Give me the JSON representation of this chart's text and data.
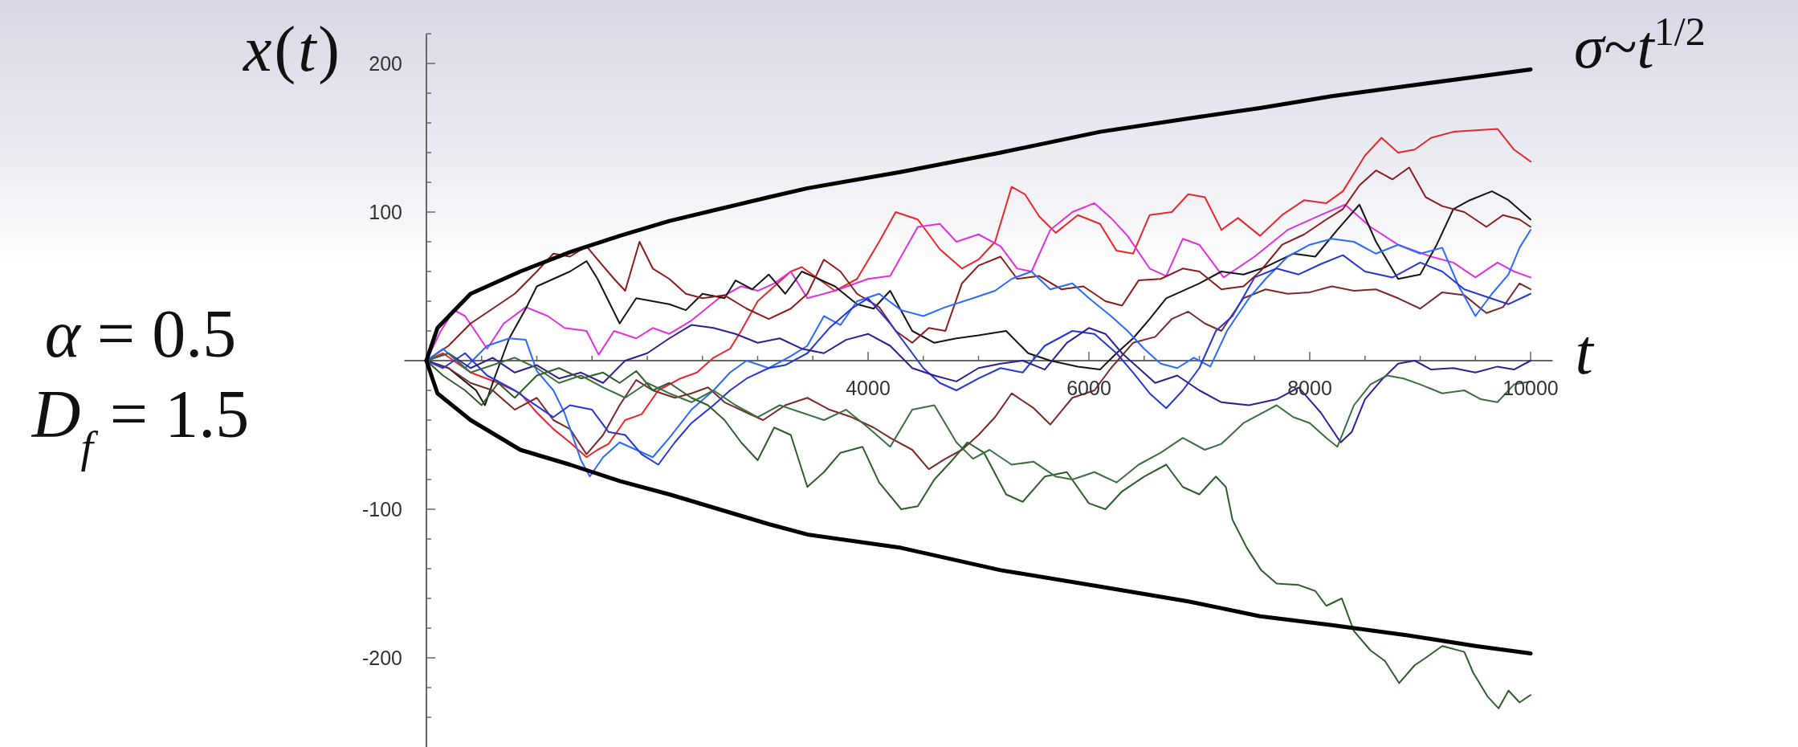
{
  "chart_data": {
    "type": "line",
    "xlabel": "t",
    "ylabel": "x(t)",
    "annotations": [
      "α = 0.5",
      "D$_{f}$ = 1.5"
    ],
    "xlim": [
      -200,
      10200
    ],
    "xticks": [
      {
        "value": 500,
        "label": null
      },
      {
        "value": 1000,
        "label": null
      },
      {
        "value": 1500,
        "label": null
      },
      {
        "value": 2000,
        "label": null
      },
      {
        "value": 2500,
        "label": null
      },
      {
        "value": 3000,
        "label": null
      },
      {
        "value": 3500,
        "label": null
      },
      4000,
      {
        "value": 4500,
        "label": null
      },
      {
        "value": 5000,
        "label": null
      },
      {
        "value": 5500,
        "label": null
      },
      6000,
      {
        "value": 6500,
        "label": null
      },
      {
        "value": 7000,
        "label": null
      },
      {
        "value": 7500,
        "label": null
      },
      8000,
      {
        "value": 8500,
        "label": null
      },
      {
        "value": 9000,
        "label": null
      },
      {
        "value": 9500,
        "label": null
      },
      10000
    ],
    "ylim": [
      -260,
      220
    ],
    "yticks": [
      {
        "value": -240,
        "label": null
      },
      {
        "value": -220,
        "label": null
      },
      -200,
      {
        "value": -180,
        "label": null
      },
      {
        "value": -160,
        "label": null
      },
      {
        "value": -140,
        "label": null
      },
      {
        "value": -120,
        "label": null
      },
      -100,
      {
        "value": -80,
        "label": null
      },
      {
        "value": -60,
        "label": null
      },
      {
        "value": -40,
        "label": null
      },
      {
        "value": -20,
        "label": null
      },
      {
        "value": 20,
        "label": null
      },
      {
        "value": 40,
        "label": null
      },
      {
        "value": 60,
        "label": null
      },
      {
        "value": 80,
        "label": null
      },
      100,
      {
        "value": 120,
        "label": null
      },
      {
        "value": 140,
        "label": null
      },
      {
        "value": 160,
        "label": null
      },
      {
        "value": 180,
        "label": null
      },
      200,
      {
        "value": 220,
        "label": null
      }
    ],
    "series": [
      {
        "name": "σ~t$^{1/2}$",
        "color": "#000000",
        "x": [
          0,
          100,
          400,
          850,
          1300,
          1750,
          2200,
          2650,
          3100,
          3450,
          4300,
          5200,
          6100,
          6900,
          7550,
          8200,
          8900,
          9500,
          10000
        ],
        "values": [
          0,
          22,
          45,
          60,
          73,
          84,
          94,
          102,
          110,
          116,
          127,
          140,
          154,
          163,
          170,
          178,
          185,
          191,
          196
        ]
      },
      {
        "color": "#000000",
        "x": [
          0,
          100,
          400,
          850,
          1300,
          1750,
          2200,
          2650,
          3100,
          3450,
          4300,
          5200,
          6100,
          6900,
          7550,
          8200,
          8900,
          9500,
          10000
        ],
        "values": [
          0,
          -22,
          -40,
          -60,
          -70,
          -81,
          -90,
          -100,
          -110,
          -117,
          -126,
          -141,
          -152,
          -162,
          -172,
          -178,
          -185,
          -192,
          -197
        ]
      },
      {
        "color": "#e8262b",
        "x": [
          0,
          150,
          400,
          650,
          850,
          1000,
          1150,
          1300,
          1450,
          1550,
          1650,
          1800,
          1950,
          2100,
          2300,
          2450,
          2600,
          2750,
          2850,
          3000,
          3150,
          3300,
          3400,
          3550,
          3700,
          3900,
          4100,
          4250,
          4450,
          4650,
          4850,
          5000,
          5150,
          5300,
          5420,
          5550,
          5700,
          5900,
          6100,
          6250,
          6400,
          6550,
          6750,
          6900,
          7050,
          7200,
          7350,
          7550,
          7750,
          7950,
          8150,
          8300,
          8500,
          8650,
          8800,
          8950,
          9100,
          9300,
          9500,
          9700,
          9850,
          10000
        ],
        "values": [
          0,
          5,
          -8,
          -15,
          -22,
          -35,
          -46,
          -55,
          -65,
          -60,
          -56,
          -40,
          -36,
          -20,
          -12,
          -8,
          2,
          8,
          20,
          40,
          50,
          60,
          63,
          55,
          47,
          55,
          80,
          100,
          95,
          75,
          62,
          68,
          80,
          117,
          112,
          97,
          86,
          98,
          92,
          74,
          72,
          98,
          100,
          112,
          110,
          88,
          96,
          84,
          98,
          108,
          106,
          114,
          138,
          150,
          140,
          142,
          150,
          154,
          155,
          156,
          142,
          134
        ]
      },
      {
        "color": "#e030e0",
        "x": [
          0,
          130,
          250,
          350,
          550,
          700,
          900,
          1100,
          1250,
          1450,
          1560,
          1700,
          1900,
          2050,
          2200,
          2400,
          2650,
          2850,
          3000,
          3150,
          3300,
          3450,
          3700,
          4000,
          4200,
          4450,
          4650,
          4800,
          5000,
          5200,
          5350,
          5480,
          5650,
          5850,
          6050,
          6200,
          6350,
          6550,
          6700,
          6850,
          7000,
          7220,
          7500,
          7800,
          8100,
          8320,
          8550,
          8800,
          9100,
          9300,
          9500,
          9700,
          9850,
          10000
        ],
        "values": [
          0,
          20,
          34,
          30,
          8,
          25,
          36,
          30,
          22,
          20,
          4,
          20,
          15,
          22,
          18,
          27,
          42,
          50,
          47,
          52,
          60,
          42,
          47,
          55,
          57,
          90,
          92,
          80,
          85,
          77,
          62,
          60,
          88,
          100,
          106,
          96,
          84,
          62,
          57,
          82,
          78,
          56,
          70,
          88,
          98,
          105,
          90,
          78,
          70,
          66,
          56,
          66,
          60,
          56
        ]
      },
      {
        "color": "#151515",
        "x": [
          0,
          200,
          450,
          530,
          600,
          750,
          900,
          1000,
          1150,
          1300,
          1450,
          1550,
          1650,
          1750,
          1900,
          2050,
          2200,
          2350,
          2500,
          2700,
          2800,
          2950,
          3100,
          3250,
          3400,
          3550,
          3700,
          3900,
          4050,
          4200,
          4400,
          4600,
          4800,
          5000,
          5250,
          5450,
          5650,
          5900,
          6100,
          6250,
          6400,
          6550,
          6700,
          6850,
          7000,
          7200,
          7400,
          7600,
          7850,
          8050,
          8250,
          8450,
          8600,
          8800,
          9000,
          9150,
          9300,
          9450,
          9650,
          9800,
          10000
        ],
        "values": [
          0,
          -5,
          -20,
          -30,
          -15,
          15,
          35,
          50,
          55,
          60,
          67,
          55,
          40,
          25,
          42,
          40,
          38,
          34,
          45,
          42,
          54,
          48,
          58,
          45,
          60,
          55,
          50,
          38,
          35,
          47,
          20,
          12,
          15,
          17,
          20,
          5,
          0,
          -4,
          -6,
          5,
          15,
          28,
          42,
          47,
          52,
          60,
          58,
          63,
          72,
          70,
          88,
          105,
          80,
          55,
          58,
          78,
          102,
          108,
          114,
          108,
          95
        ]
      },
      {
        "color": "#8b1c1c",
        "x": [
          0,
          200,
          400,
          600,
          800,
          1000,
          1150,
          1300,
          1450,
          1550,
          1700,
          1800,
          1930,
          2050,
          2200,
          2350,
          2500,
          2700,
          2900,
          3100,
          3300,
          3450,
          3600,
          3750,
          3900,
          4100,
          4250,
          4400,
          4550,
          4700,
          4850,
          5000,
          5200,
          5350,
          5550,
          5750,
          5950,
          6150,
          6300,
          6450,
          6650,
          6850,
          7000,
          7200,
          7400,
          7550,
          7750,
          7950,
          8150,
          8300,
          8450,
          8600,
          8750,
          8900,
          9050,
          9200,
          9400,
          9600,
          9750,
          9900,
          10000
        ],
        "values": [
          0,
          10,
          25,
          35,
          45,
          60,
          72,
          70,
          77,
          68,
          55,
          47,
          80,
          62,
          55,
          45,
          42,
          44,
          35,
          28,
          35,
          45,
          68,
          60,
          45,
          36,
          20,
          12,
          22,
          20,
          52,
          64,
          70,
          55,
          57,
          48,
          50,
          40,
          37,
          54,
          55,
          62,
          60,
          48,
          50,
          60,
          78,
          85,
          95,
          102,
          118,
          128,
          122,
          130,
          110,
          104,
          100,
          90,
          98,
          95,
          90
        ]
      },
      {
        "color": "#7a2a2a",
        "x": [
          0,
          200,
          400,
          600,
          800,
          1000,
          1150,
          1300,
          1450,
          1600,
          1750,
          1900,
          2050,
          2250,
          2400,
          2550,
          2700,
          2900,
          3050,
          3250,
          3450,
          3650,
          3850,
          4050,
          4200,
          4400,
          4550,
          4700,
          4850,
          5000,
          5150,
          5300,
          5500,
          5650,
          5850,
          6050,
          6200,
          6400,
          6600,
          6750,
          6900,
          7050,
          7200,
          7400,
          7600,
          7800,
          8000,
          8200,
          8400,
          8600,
          8800,
          9000,
          9200,
          9400,
          9600,
          9750,
          9900,
          10000
        ],
        "values": [
          0,
          -5,
          -15,
          -20,
          -33,
          -25,
          -40,
          -46,
          -63,
          -50,
          -30,
          -13,
          -20,
          -25,
          -22,
          -18,
          -28,
          -35,
          -40,
          -30,
          -25,
          -33,
          -38,
          -45,
          -52,
          -60,
          -73,
          -66,
          -60,
          -50,
          -38,
          -22,
          -32,
          -43,
          -25,
          -20,
          -5,
          12,
          16,
          28,
          33,
          25,
          20,
          42,
          48,
          45,
          46,
          50,
          47,
          48,
          42,
          35,
          46,
          44,
          32,
          36,
          52,
          48
        ]
      },
      {
        "color": "#2a6aff",
        "x": [
          0,
          150,
          350,
          550,
          750,
          900,
          1000,
          1150,
          1250,
          1400,
          1480,
          1600,
          1750,
          1900,
          2050,
          2200,
          2400,
          2600,
          2750,
          2900,
          3100,
          3300,
          3450,
          3600,
          3750,
          3900,
          4100,
          4300,
          4500,
          4700,
          4950,
          5150,
          5300,
          5480,
          5650,
          5850,
          6000,
          6200,
          6350,
          6500,
          6650,
          6800,
          6950,
          7100,
          7250,
          7450,
          7600,
          7800,
          8000,
          8200,
          8400,
          8600,
          8800,
          9000,
          9200,
          9350,
          9500,
          9650,
          9800,
          9900,
          10000
        ],
        "values": [
          0,
          8,
          -5,
          10,
          15,
          14,
          -7,
          -20,
          -35,
          -67,
          -78,
          -65,
          -55,
          -60,
          -65,
          -52,
          -33,
          -20,
          -8,
          0,
          -5,
          3,
          10,
          30,
          24,
          40,
          45,
          34,
          30,
          36,
          42,
          47,
          55,
          60,
          48,
          52,
          42,
          30,
          20,
          8,
          -2,
          -5,
          2,
          -4,
          20,
          42,
          55,
          70,
          78,
          82,
          80,
          72,
          78,
          72,
          76,
          50,
          30,
          45,
          58,
          76,
          88
        ]
      },
      {
        "color": "#2636d8",
        "x": [
          0,
          150,
          350,
          550,
          800,
          950,
          1150,
          1300,
          1500,
          1650,
          1800,
          1950,
          2100,
          2250,
          2400,
          2600,
          2750,
          2900,
          3100,
          3250,
          3450,
          3650,
          3850,
          4000,
          4200,
          4350,
          4500,
          4650,
          4800,
          5000,
          5200,
          5400,
          5600,
          5850,
          6050,
          6250,
          6400,
          6550,
          6700,
          6850,
          7000,
          7150,
          7300,
          7500,
          7700,
          7900,
          8100,
          8300,
          8500,
          8750,
          9000,
          9200,
          9400,
          9600,
          9800,
          10000
        ],
        "values": [
          0,
          -5,
          5,
          -10,
          -20,
          -28,
          -38,
          -30,
          -33,
          -48,
          -50,
          -63,
          -70,
          -55,
          -42,
          -30,
          -20,
          -12,
          -5,
          -3,
          5,
          22,
          35,
          42,
          25,
          10,
          -5,
          -15,
          -20,
          -12,
          -5,
          -8,
          10,
          20,
          18,
          5,
          -8,
          -22,
          -32,
          -20,
          -5,
          20,
          30,
          56,
          62,
          58,
          65,
          71,
          60,
          56,
          66,
          60,
          48,
          43,
          38,
          45
        ]
      },
      {
        "color": "#2e1f96",
        "x": [
          0,
          200,
          400,
          600,
          800,
          1000,
          1200,
          1400,
          1600,
          1800,
          2000,
          2200,
          2400,
          2600,
          2800,
          3000,
          3200,
          3400,
          3600,
          3800,
          4000,
          4200,
          4400,
          4600,
          4800,
          5000,
          5200,
          5400,
          5600,
          5800,
          6000,
          6150,
          6300,
          6450,
          6600,
          6800,
          7000,
          7200,
          7450,
          7700,
          7900,
          8100,
          8280,
          8380,
          8500,
          8650,
          8800,
          8950,
          9100,
          9300,
          9500,
          9700,
          9850,
          10000
        ],
        "values": [
          0,
          5,
          -5,
          2,
          -8,
          -3,
          -12,
          -8,
          -15,
          0,
          5,
          15,
          24,
          22,
          18,
          12,
          15,
          8,
          5,
          14,
          18,
          10,
          -5,
          -10,
          -14,
          -5,
          -2,
          0,
          -6,
          12,
          22,
          18,
          5,
          -5,
          -15,
          -10,
          -20,
          -28,
          -30,
          -26,
          -18,
          -35,
          -55,
          -48,
          -26,
          -13,
          -2,
          0,
          -6,
          -5,
          -8,
          -4,
          -6,
          0
        ]
      },
      {
        "color": "#2d5e2a",
        "x": [
          0,
          150,
          350,
          500,
          650,
          800,
          1000,
          1200,
          1400,
          1600,
          1750,
          1900,
          2050,
          2200,
          2400,
          2550,
          2700,
          2850,
          3000,
          3150,
          3300,
          3450,
          3600,
          3750,
          3950,
          4100,
          4300,
          4450,
          4600,
          4750,
          4900,
          5050,
          5250,
          5400,
          5600,
          5800,
          6000,
          6150,
          6300,
          6500,
          6700,
          6850,
          7000,
          7150,
          7240,
          7300,
          7430,
          7560,
          7700,
          7900,
          8050,
          8150,
          8290,
          8400,
          8550,
          8680,
          8810,
          8950,
          9050,
          9200,
          9400,
          9480,
          9610,
          9710,
          9800,
          9900,
          10000
        ],
        "values": [
          0,
          -10,
          -20,
          -30,
          -15,
          -25,
          -10,
          -5,
          -12,
          -8,
          -15,
          -7,
          -20,
          -15,
          -25,
          -30,
          -40,
          -55,
          -67,
          -45,
          -50,
          -85,
          -75,
          -62,
          -58,
          -82,
          -100,
          -98,
          -80,
          -68,
          -55,
          -62,
          -90,
          -95,
          -78,
          -75,
          -96,
          -100,
          -88,
          -78,
          -70,
          -85,
          -90,
          -78,
          -85,
          -107,
          -126,
          -141,
          -150,
          -151,
          -155,
          -165,
          -160,
          -182,
          -195,
          -202,
          -217,
          -205,
          -200,
          -192,
          -196,
          -210,
          -226,
          -234,
          -222,
          -230,
          -225
        ]
      },
      {
        "color": "#3a7040",
        "x": [
          0,
          200,
          400,
          600,
          800,
          1000,
          1200,
          1400,
          1600,
          1800,
          2000,
          2200,
          2400,
          2600,
          2800,
          3000,
          3200,
          3400,
          3600,
          3800,
          4000,
          4200,
          4400,
          4600,
          4800,
          4950,
          5100,
          5300,
          5500,
          5700,
          5850,
          6050,
          6250,
          6450,
          6650,
          6850,
          7050,
          7200,
          7400,
          7550,
          7700,
          7850,
          8000,
          8150,
          8250,
          8400,
          8550,
          8700,
          8850,
          9000,
          9200,
          9400,
          9550,
          9700,
          9850,
          10000
        ],
        "values": [
          0,
          5,
          -8,
          -3,
          2,
          -5,
          -15,
          -10,
          -18,
          -25,
          -15,
          -22,
          -28,
          -20,
          -30,
          -38,
          -30,
          -35,
          -40,
          -33,
          -45,
          -58,
          -33,
          -30,
          -55,
          -66,
          -60,
          -70,
          -68,
          -78,
          -80,
          -75,
          -82,
          -70,
          -62,
          -52,
          -60,
          -56,
          -42,
          -36,
          -30,
          -38,
          -42,
          -52,
          -58,
          -30,
          -16,
          -10,
          -12,
          -16,
          -22,
          -20,
          -26,
          -28,
          -16,
          -14
        ]
      }
    ]
  }
}
